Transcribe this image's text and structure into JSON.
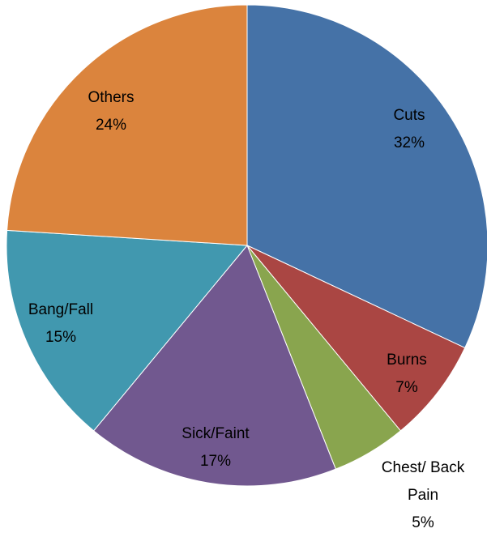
{
  "chart_data": {
    "type": "pie",
    "categories": [
      "Cuts",
      "Burns",
      "Chest/ Back Pain",
      "Sick/Faint",
      "Bang/Fall",
      "Others"
    ],
    "values": [
      32,
      7,
      5,
      17,
      15,
      24
    ],
    "value_labels": [
      "32%",
      "7%",
      "5%",
      "17%",
      "15%",
      "24%"
    ],
    "colors": [
      "#4572a7",
      "#aa4643",
      "#89a54e",
      "#71588f",
      "#4198af",
      "#db843d"
    ]
  }
}
